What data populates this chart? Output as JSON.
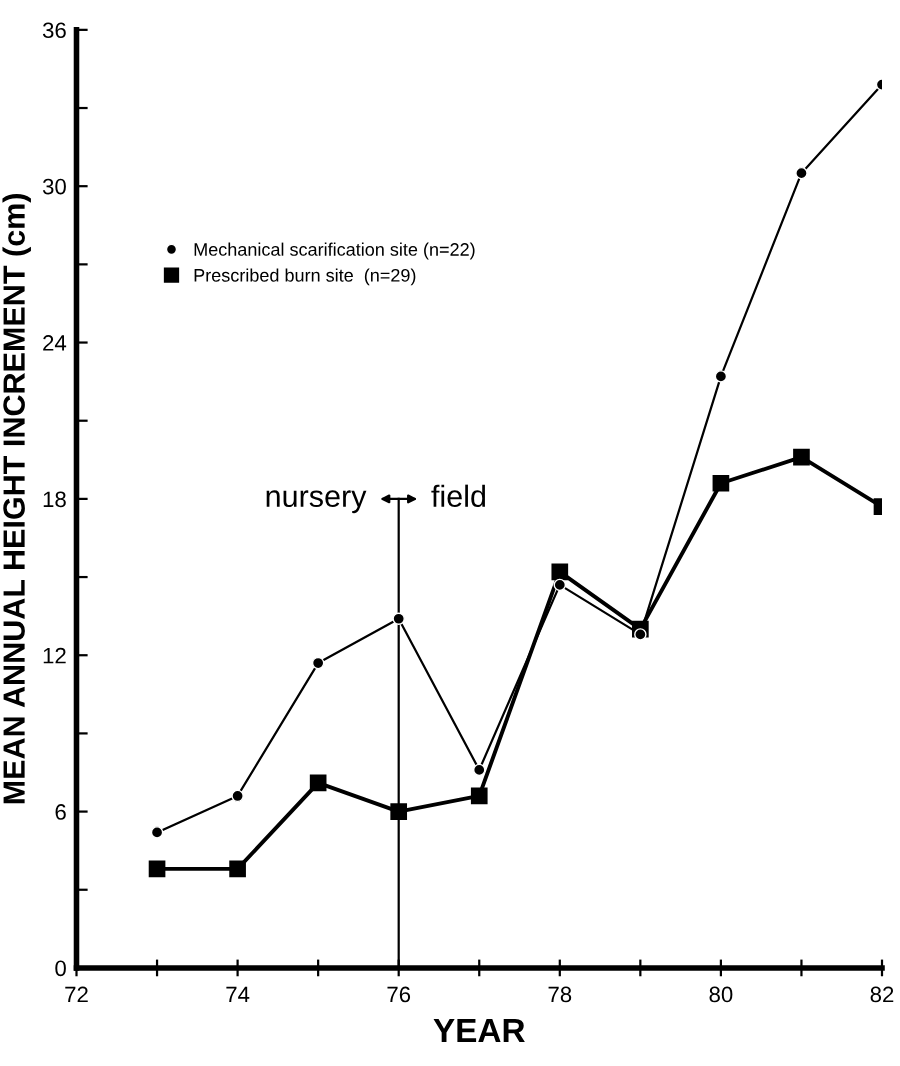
{
  "chart_data": {
    "type": "line",
    "xlabel": "YEAR",
    "ylabel": "MEAN ANNUAL HEIGHT INCREMENT (cm)",
    "x": [
      73,
      74,
      75,
      76,
      77,
      78,
      79,
      80,
      81,
      82
    ],
    "series": [
      {
        "name": "Mechanical scarification site (n=22)",
        "color": "#000000",
        "marker": "circle",
        "values": [
          5.2,
          6.6,
          11.7,
          13.4,
          7.6,
          14.7,
          12.8,
          22.7,
          30.5,
          33.9
        ]
      },
      {
        "name": "Prescribed burn site  (n=29)",
        "color": "#000000",
        "marker": "square",
        "values": [
          3.8,
          3.8,
          7.1,
          6.0,
          6.6,
          15.2,
          13.0,
          18.6,
          19.6,
          17.7
        ]
      }
    ],
    "xlim": [
      72,
      82
    ],
    "xticks": [
      72,
      {
        "value": 73,
        "label": null
      },
      74,
      {
        "value": 75,
        "label": null
      },
      76,
      {
        "value": 77,
        "label": null
      },
      78,
      {
        "value": 79,
        "label": null
      },
      80,
      {
        "value": 81,
        "label": null
      },
      82
    ],
    "ylim": [
      0,
      36
    ],
    "yticks": [
      0,
      {
        "value": 3,
        "label": null
      },
      6,
      {
        "value": 9,
        "label": null
      },
      12,
      {
        "value": 15,
        "label": null
      },
      18,
      {
        "value": 21,
        "label": null
      },
      24,
      {
        "value": 27,
        "label": null
      },
      30,
      {
        "value": 33,
        "label": null
      },
      36
    ],
    "ref_lines": [
      {
        "axis": "x",
        "value": 76,
        "color": "#000000",
        "line_style": "solid"
      }
    ],
    "annotations": [
      "nursery",
      "field"
    ],
    "legend": "top left",
    "grid": false
  }
}
